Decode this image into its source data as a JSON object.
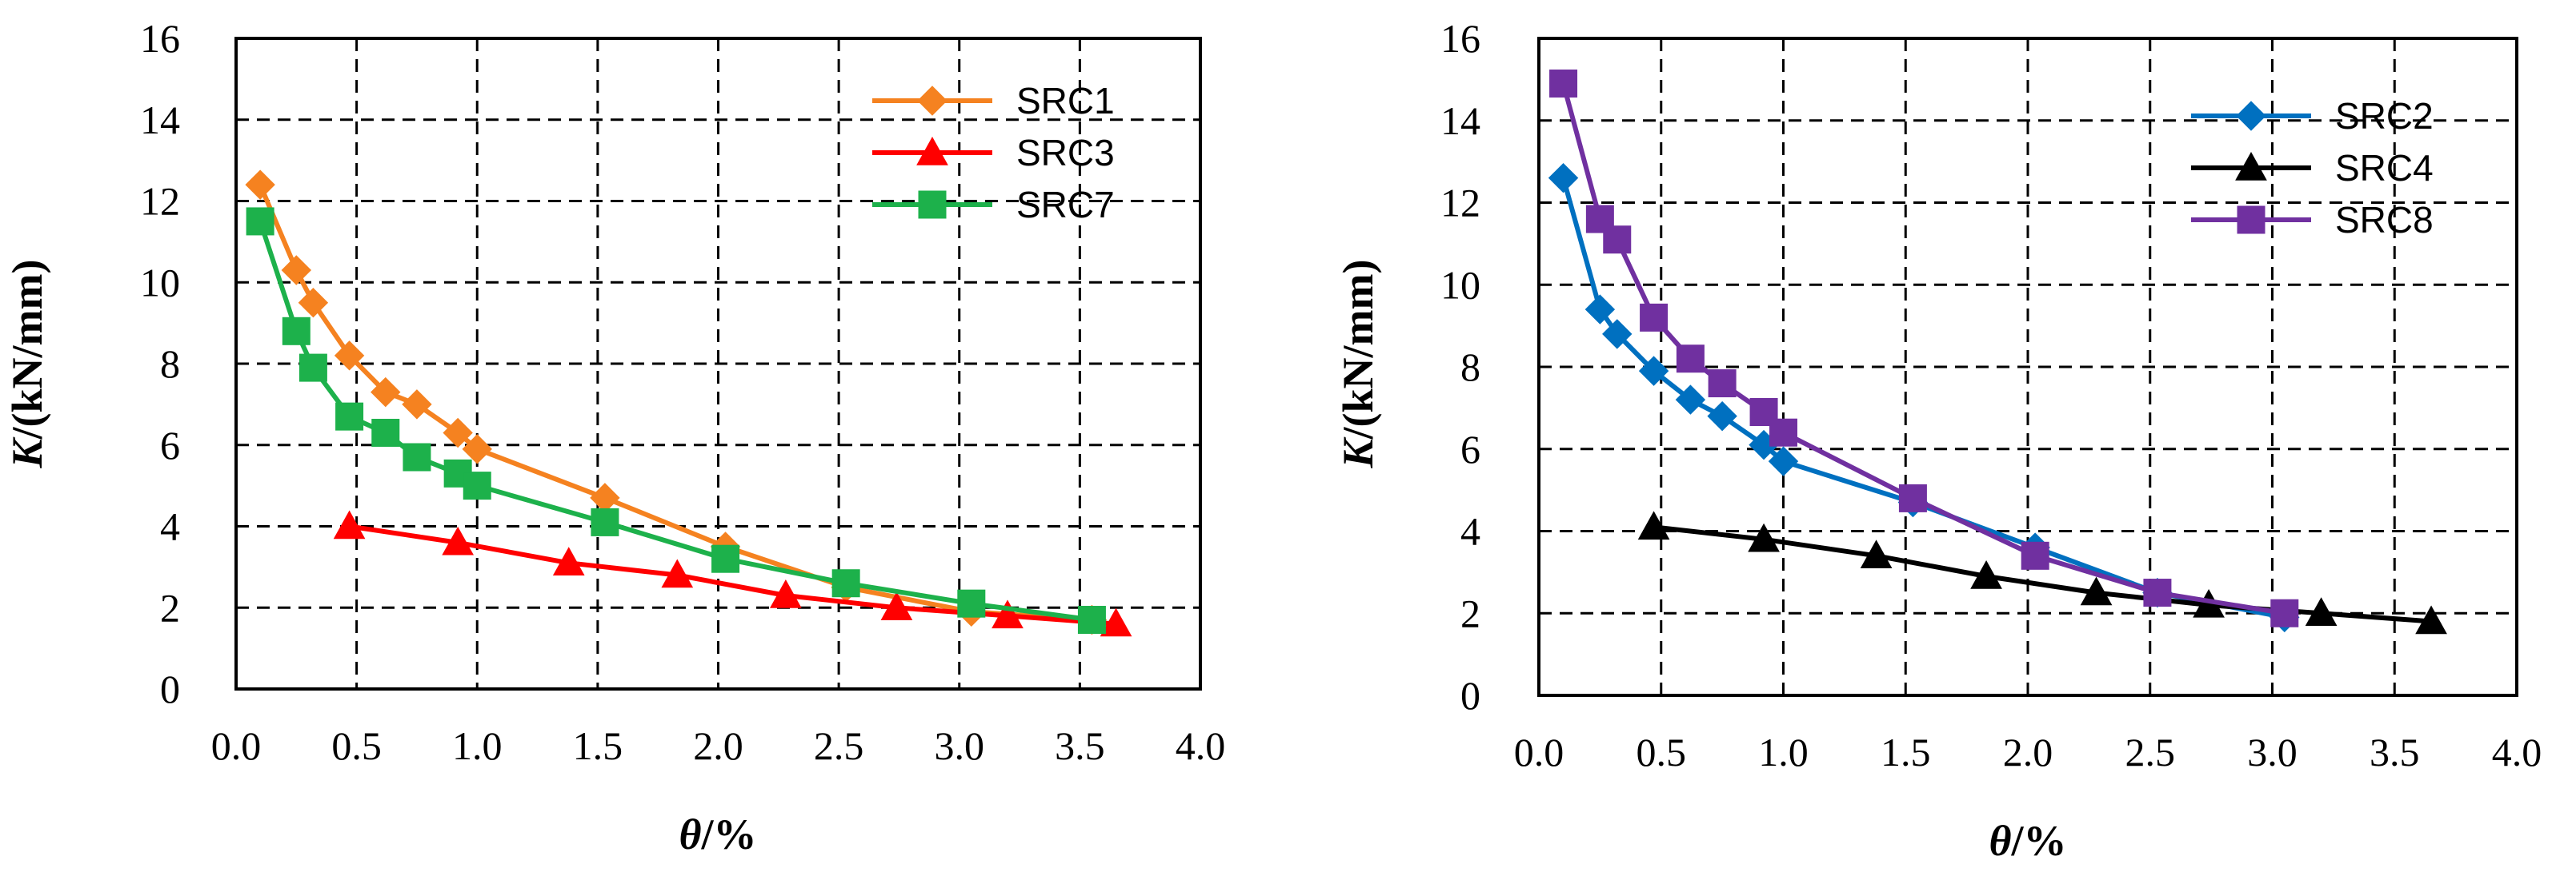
{
  "chart_data": [
    {
      "type": "line",
      "xlabel": "θ/%",
      "ylabel": "K/(kN/mm)",
      "xlim": [
        0,
        4
      ],
      "ylim": [
        0,
        16
      ],
      "x_ticks": [
        "0.0",
        "0.5",
        "1.0",
        "1.5",
        "2.0",
        "2.5",
        "3.0",
        "3.5",
        "4.0"
      ],
      "y_ticks": [
        "0",
        "2",
        "4",
        "6",
        "8",
        "10",
        "12",
        "14",
        "16"
      ],
      "grid": true,
      "grid_style": "dashed",
      "legend_position": "top-right",
      "series": [
        {
          "name": "SRC1",
          "color": "#F58220",
          "marker": "diamond",
          "points": [
            [
              0.1,
              12.4
            ],
            [
              0.25,
              10.3
            ],
            [
              0.32,
              9.5
            ],
            [
              0.47,
              8.2
            ],
            [
              0.62,
              7.3
            ],
            [
              0.75,
              7.0
            ],
            [
              0.92,
              6.3
            ],
            [
              1.0,
              5.9
            ],
            [
              1.53,
              4.7
            ],
            [
              2.03,
              3.5
            ],
            [
              2.53,
              2.5
            ],
            [
              3.05,
              1.9
            ],
            [
              3.55,
              1.7
            ]
          ]
        },
        {
          "name": "SRC3",
          "color": "#FF0000",
          "marker": "triangle",
          "points": [
            [
              0.47,
              4.0
            ],
            [
              0.92,
              3.6
            ],
            [
              1.38,
              3.1
            ],
            [
              1.83,
              2.8
            ],
            [
              2.28,
              2.3
            ],
            [
              2.74,
              2.0
            ],
            [
              3.2,
              1.8
            ],
            [
              3.65,
              1.6
            ]
          ]
        },
        {
          "name": "SRC7",
          "color": "#1DB14B",
          "marker": "square",
          "points": [
            [
              0.1,
              11.5
            ],
            [
              0.25,
              8.8
            ],
            [
              0.32,
              7.9
            ],
            [
              0.47,
              6.7
            ],
            [
              0.62,
              6.3
            ],
            [
              0.75,
              5.7
            ],
            [
              0.92,
              5.3
            ],
            [
              1.0,
              5.0
            ],
            [
              1.53,
              4.1
            ],
            [
              2.03,
              3.2
            ],
            [
              2.53,
              2.6
            ],
            [
              3.05,
              2.1
            ],
            [
              3.55,
              1.7
            ]
          ]
        }
      ]
    },
    {
      "type": "line",
      "xlabel": "θ/%",
      "ylabel": "K/(kN/mm)",
      "xlim": [
        0,
        4
      ],
      "ylim": [
        0,
        16
      ],
      "x_ticks": [
        "0.0",
        "0.5",
        "1.0",
        "1.5",
        "2.0",
        "2.5",
        "3.0",
        "3.5",
        "4.0"
      ],
      "y_ticks": [
        "0",
        "2",
        "4",
        "6",
        "8",
        "10",
        "12",
        "14",
        "16"
      ],
      "grid": true,
      "grid_style": "dashed",
      "legend_position": "top-right",
      "series": [
        {
          "name": "SRC2",
          "color": "#0070C0",
          "marker": "diamond",
          "points": [
            [
              0.1,
              12.6
            ],
            [
              0.25,
              9.4
            ],
            [
              0.32,
              8.8
            ],
            [
              0.47,
              7.9
            ],
            [
              0.62,
              7.2
            ],
            [
              0.75,
              6.8
            ],
            [
              0.92,
              6.1
            ],
            [
              1.0,
              5.7
            ],
            [
              1.53,
              4.7
            ],
            [
              2.03,
              3.6
            ],
            [
              2.53,
              2.5
            ],
            [
              3.05,
              1.9
            ]
          ]
        },
        {
          "name": "SRC4",
          "color": "#000000",
          "marker": "triangle",
          "points": [
            [
              0.47,
              4.1
            ],
            [
              0.92,
              3.8
            ],
            [
              1.38,
              3.4
            ],
            [
              1.83,
              2.9
            ],
            [
              2.28,
              2.5
            ],
            [
              2.74,
              2.2
            ],
            [
              3.2,
              2.0
            ],
            [
              3.65,
              1.8
            ]
          ]
        },
        {
          "name": "SRC8",
          "color": "#7030A0",
          "marker": "square",
          "points": [
            [
              0.1,
              14.9
            ],
            [
              0.25,
              11.6
            ],
            [
              0.32,
              11.1
            ],
            [
              0.47,
              9.2
            ],
            [
              0.62,
              8.2
            ],
            [
              0.75,
              7.6
            ],
            [
              0.92,
              6.9
            ],
            [
              1.0,
              6.4
            ],
            [
              1.53,
              4.8
            ],
            [
              2.03,
              3.4
            ],
            [
              2.53,
              2.5
            ],
            [
              3.05,
              2.0
            ]
          ]
        }
      ]
    }
  ]
}
